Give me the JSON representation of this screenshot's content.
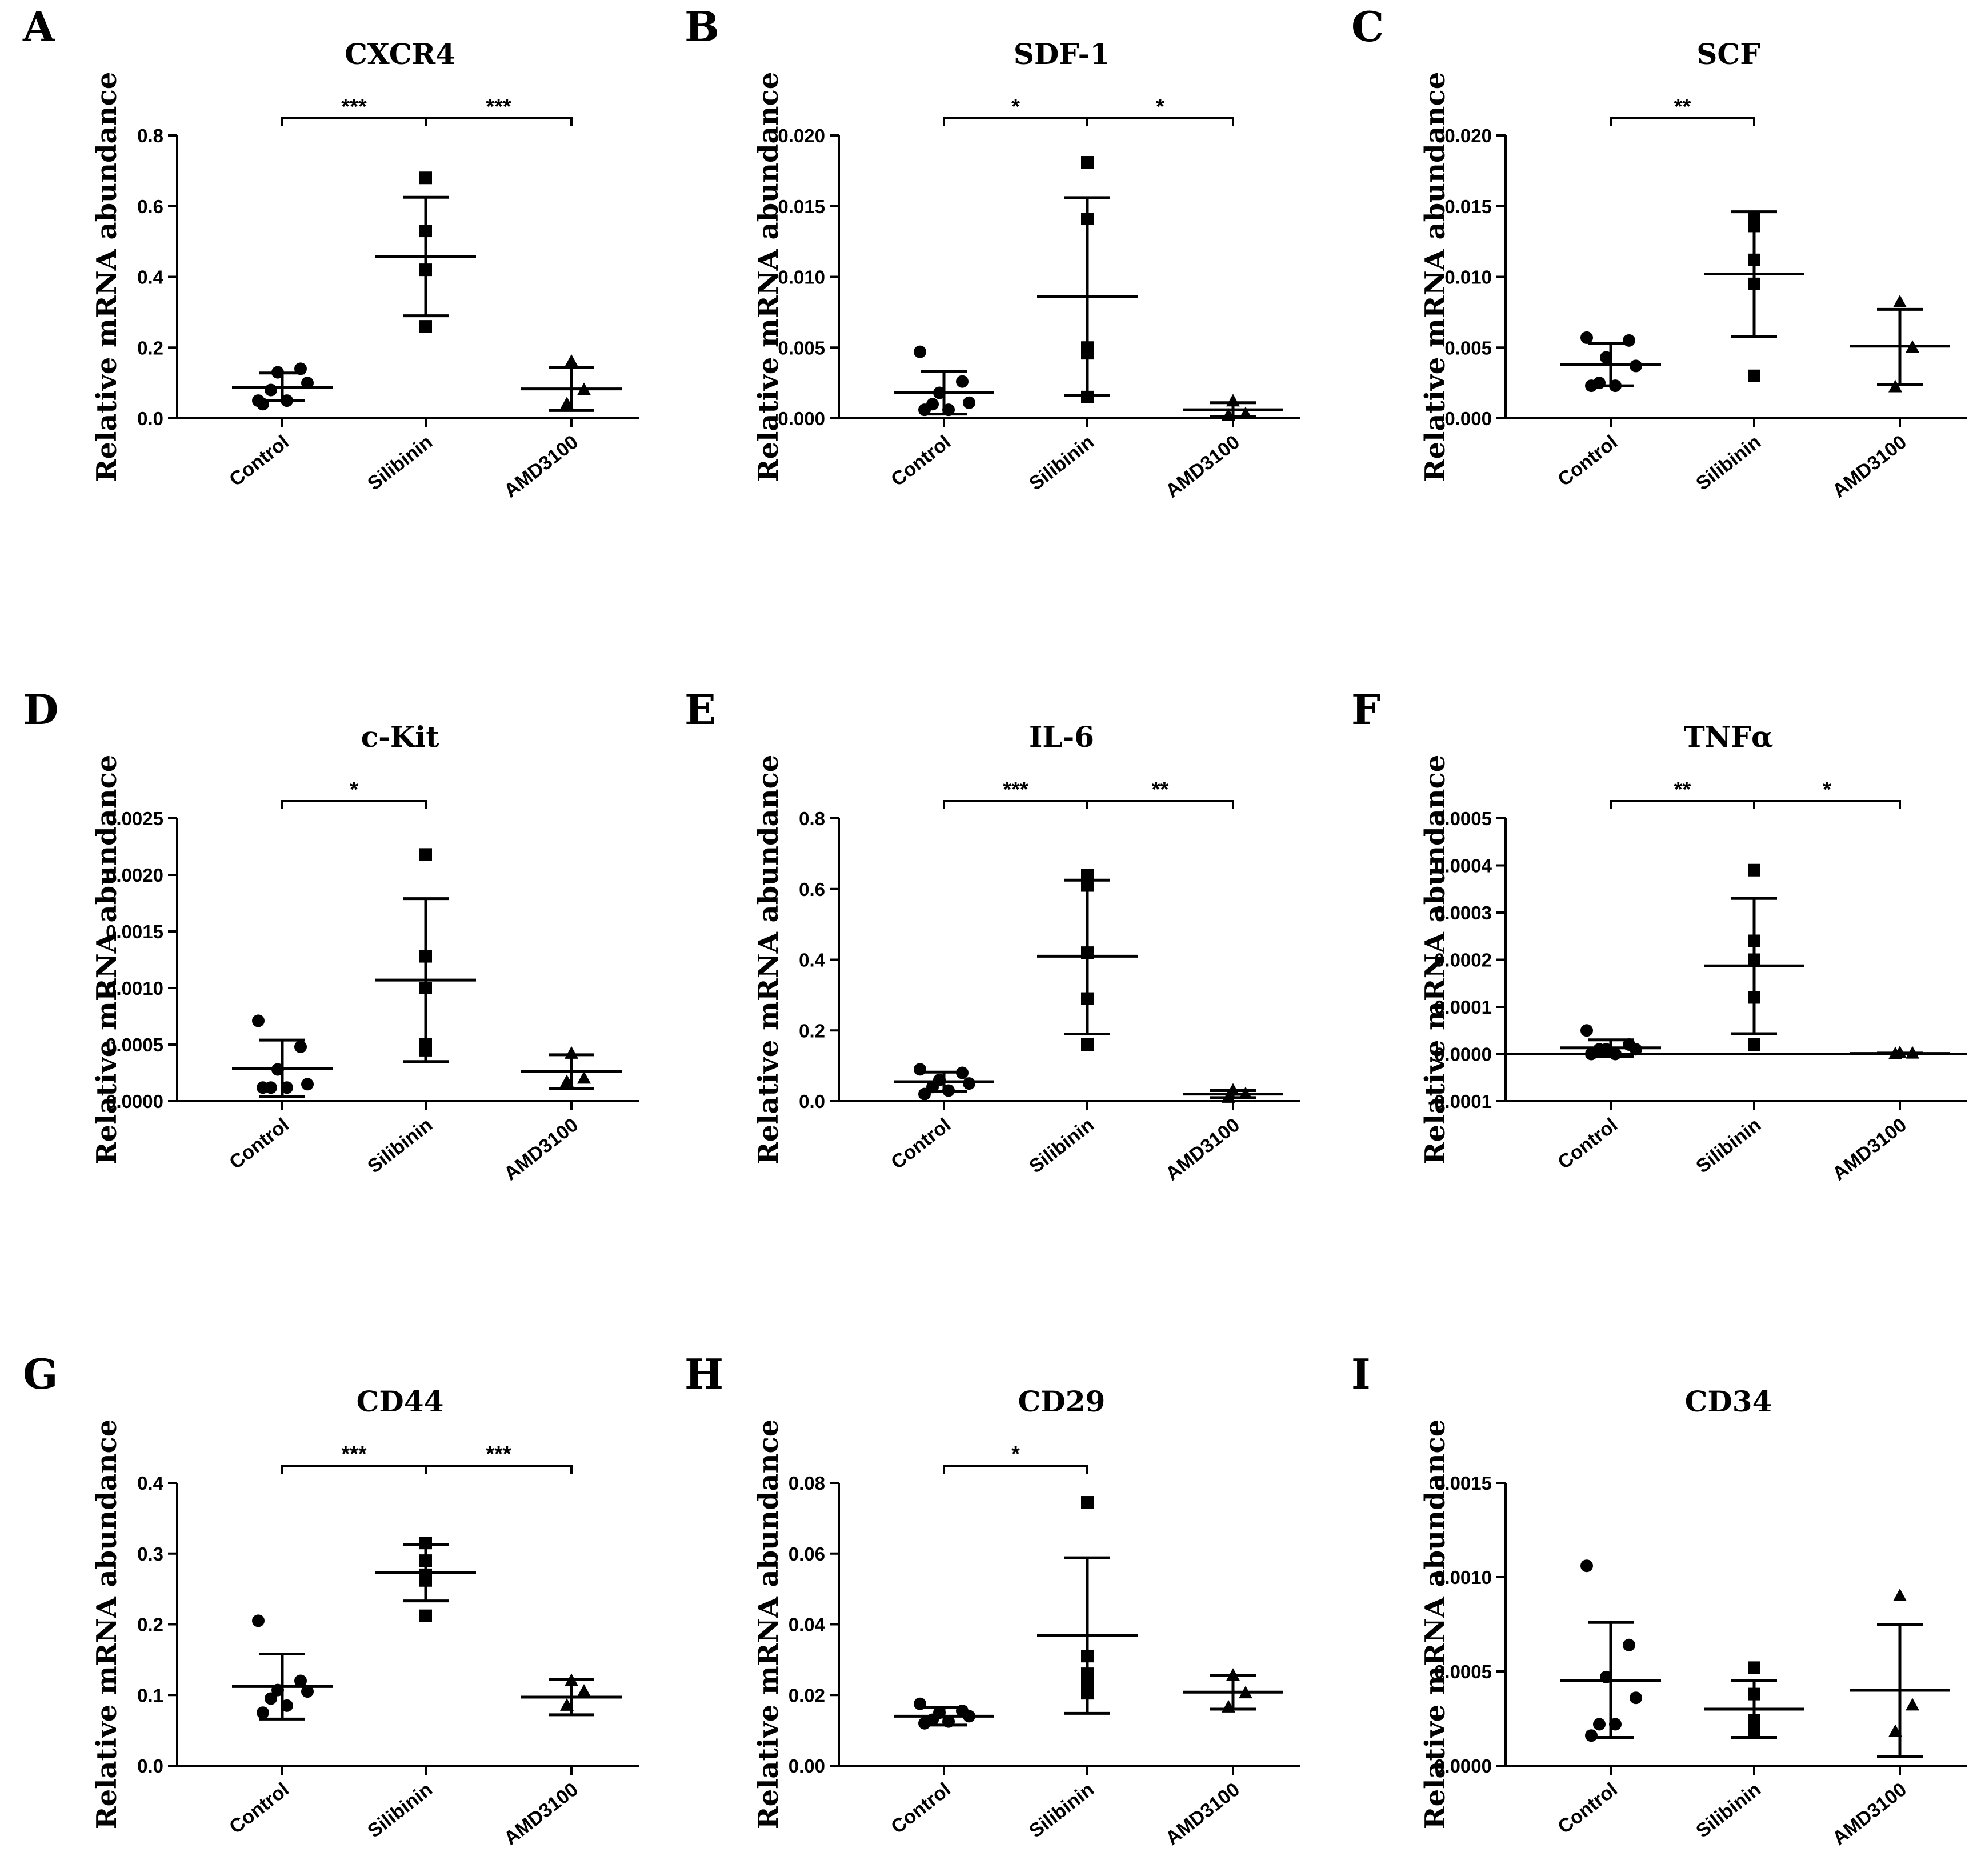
{
  "figure": {
    "x_categories": [
      "Control",
      "Silibinin",
      "AMD3100"
    ],
    "y_axis_label": "Relative mRNA abundance"
  },
  "chart_data": [
    {
      "type": "scatter",
      "panel": "A",
      "title": "CXCR4",
      "xlabel": "",
      "ylabel": "Relative mRNA abundance",
      "categories": [
        "Control",
        "Silibinin",
        "AMD3100"
      ],
      "ylim": [
        0,
        0.8
      ],
      "yticks": [
        0.0,
        0.2,
        0.4,
        0.6,
        0.8
      ],
      "tick_labels": [
        "0.0",
        "0.2",
        "0.4",
        "0.6",
        "0.8"
      ],
      "groups": [
        {
          "name": "Control",
          "marker": "circle",
          "points": [
            0.05,
            0.14,
            0.13,
            0.1,
            0.08,
            0.05,
            0.04
          ],
          "mean": 0.088,
          "sd_low": 0.05,
          "sd_high": 0.128
        },
        {
          "name": "Silibinin",
          "marker": "square",
          "points": [
            0.68,
            0.53,
            0.42,
            0.26
          ],
          "mean": 0.457,
          "sd_low": 0.29,
          "sd_high": 0.625
        },
        {
          "name": "AMD3100",
          "marker": "triangle",
          "points": [
            0.16,
            0.08,
            0.04
          ],
          "mean": 0.083,
          "sd_low": 0.022,
          "sd_high": 0.143
        }
      ],
      "significance": [
        {
          "from": "Control",
          "to": "Silibinin",
          "label": "***"
        },
        {
          "from": "Silibinin",
          "to": "AMD3100",
          "label": "***"
        }
      ]
    },
    {
      "type": "scatter",
      "panel": "B",
      "title": "SDF-1",
      "xlabel": "",
      "ylabel": "Relative mRNA abundance",
      "categories": [
        "Control",
        "Silibinin",
        "AMD3100"
      ],
      "ylim": [
        0,
        0.02
      ],
      "yticks": [
        0.0,
        0.005,
        0.01,
        0.015,
        0.02
      ],
      "tick_labels": [
        "0.000",
        "0.005",
        "0.010",
        "0.015",
        "0.020"
      ],
      "groups": [
        {
          "name": "Control",
          "marker": "circle",
          "points": [
            0.0047,
            0.0026,
            0.0018,
            0.0011,
            0.001,
            0.0006,
            0.0006
          ],
          "mean": 0.0018,
          "sd_low": 0.0003,
          "sd_high": 0.0033
        },
        {
          "name": "Silibinin",
          "marker": "square",
          "points": [
            0.0181,
            0.0141,
            0.005,
            0.0046,
            0.0015
          ],
          "mean": 0.0086,
          "sd_low": 0.0016,
          "sd_high": 0.0156
        },
        {
          "name": "AMD3100",
          "marker": "triangle",
          "points": [
            0.0012,
            0.0003,
            0.0002
          ],
          "mean": 0.0006,
          "sd_low": 0.0001,
          "sd_high": 0.0011
        }
      ],
      "significance": [
        {
          "from": "Control",
          "to": "Silibinin",
          "label": "*"
        },
        {
          "from": "Silibinin",
          "to": "AMD3100",
          "label": "*"
        }
      ]
    },
    {
      "type": "scatter",
      "panel": "C",
      "title": "SCF",
      "xlabel": "",
      "ylabel": "Relative mRNA abundance",
      "categories": [
        "Control",
        "Silibinin",
        "AMD3100"
      ],
      "ylim": [
        0,
        0.02
      ],
      "yticks": [
        0.0,
        0.005,
        0.01,
        0.015,
        0.02
      ],
      "tick_labels": [
        "0.000",
        "0.005",
        "0.010",
        "0.015",
        "0.020"
      ],
      "groups": [
        {
          "name": "Control",
          "marker": "circle",
          "points": [
            0.0057,
            0.0055,
            0.0043,
            0.0037,
            0.0025,
            0.0023,
            0.0023
          ],
          "mean": 0.0038,
          "sd_low": 0.0023,
          "sd_high": 0.0053
        },
        {
          "name": "Silibinin",
          "marker": "square",
          "points": [
            0.0141,
            0.0136,
            0.0112,
            0.0095,
            0.003
          ],
          "mean": 0.0102,
          "sd_low": 0.0058,
          "sd_high": 0.0146
        },
        {
          "name": "AMD3100",
          "marker": "triangle",
          "points": [
            0.0082,
            0.005,
            0.0022
          ],
          "mean": 0.0051,
          "sd_low": 0.0024,
          "sd_high": 0.0077
        }
      ],
      "significance": [
        {
          "from": "Control",
          "to": "Silibinin",
          "label": "**"
        }
      ]
    },
    {
      "type": "scatter",
      "panel": "D",
      "title": "c-Kit",
      "xlabel": "",
      "ylabel": "Relative mRNA abundance",
      "categories": [
        "Control",
        "Silibinin",
        "AMD3100"
      ],
      "ylim": [
        0,
        0.0025
      ],
      "yticks": [
        0.0,
        0.0005,
        0.001,
        0.0015,
        0.002,
        0.0025
      ],
      "tick_labels": [
        "0.0000",
        "0.0005",
        "0.0010",
        "0.0015",
        "0.0020",
        "0.0025"
      ],
      "groups": [
        {
          "name": "Control",
          "marker": "circle",
          "points": [
            0.00071,
            0.00048,
            0.00028,
            0.00015,
            0.00012,
            0.00012,
            0.00012
          ],
          "mean": 0.00029,
          "sd_low": 4e-05,
          "sd_high": 0.00054
        },
        {
          "name": "Silibinin",
          "marker": "square",
          "points": [
            0.00218,
            0.00128,
            0.001,
            0.0005,
            0.00045
          ],
          "mean": 0.00107,
          "sd_low": 0.00035,
          "sd_high": 0.00179
        },
        {
          "name": "AMD3100",
          "marker": "triangle",
          "points": [
            0.00042,
            0.0002,
            0.00017
          ],
          "mean": 0.00026,
          "sd_low": 0.00011,
          "sd_high": 0.00041
        }
      ],
      "significance": [
        {
          "from": "Control",
          "to": "Silibinin",
          "label": "*"
        }
      ]
    },
    {
      "type": "scatter",
      "panel": "E",
      "title": "IL-6",
      "xlabel": "",
      "ylabel": "Relative mRNA abundance",
      "categories": [
        "Control",
        "Silibinin",
        "AMD3100"
      ],
      "ylim": [
        0,
        0.8
      ],
      "yticks": [
        0.0,
        0.2,
        0.4,
        0.6,
        0.8
      ],
      "tick_labels": [
        "0.0",
        "0.2",
        "0.4",
        "0.6",
        "0.8"
      ],
      "groups": [
        {
          "name": "Control",
          "marker": "circle",
          "points": [
            0.09,
            0.08,
            0.06,
            0.05,
            0.04,
            0.03,
            0.02
          ],
          "mean": 0.055,
          "sd_low": 0.028,
          "sd_high": 0.082
        },
        {
          "name": "Silibinin",
          "marker": "square",
          "points": [
            0.64,
            0.61,
            0.42,
            0.29,
            0.16
          ],
          "mean": 0.41,
          "sd_low": 0.19,
          "sd_high": 0.625
        },
        {
          "name": "AMD3100",
          "marker": "triangle",
          "points": [
            0.03,
            0.02,
            0.01
          ],
          "mean": 0.02,
          "sd_low": 0.01,
          "sd_high": 0.03
        }
      ],
      "significance": [
        {
          "from": "Control",
          "to": "Silibinin",
          "label": "***"
        },
        {
          "from": "Silibinin",
          "to": "AMD3100",
          "label": "**"
        }
      ]
    },
    {
      "type": "scatter",
      "panel": "F",
      "title": "TNFα",
      "xlabel": "",
      "ylabel": "Relative mRNA abundance",
      "categories": [
        "Control",
        "Silibinin",
        "AMD3100"
      ],
      "ylim": [
        -0.0001,
        0.0005
      ],
      "yticks": [
        -0.0001,
        0.0,
        0.0001,
        0.0002,
        0.0003,
        0.0004,
        0.0005
      ],
      "tick_labels": [
        "-0.0001",
        "0.0000",
        "0.0001",
        "0.0002",
        "0.0003",
        "0.0004",
        "0.0005"
      ],
      "zero_line": true,
      "groups": [
        {
          "name": "Control",
          "marker": "circle",
          "points": [
            5e-05,
            2e-05,
            1e-05,
            1e-05,
            1e-05,
            0.0,
            0.0
          ],
          "mean": 1.3e-05,
          "sd_low": -5e-06,
          "sd_high": 3e-05
        },
        {
          "name": "Silibinin",
          "marker": "square",
          "points": [
            0.00039,
            0.00024,
            0.0002,
            0.00012,
            2e-05
          ],
          "mean": 0.000187,
          "sd_low": 4.3e-05,
          "sd_high": 0.00033
        },
        {
          "name": "AMD3100",
          "marker": "triangle",
          "points": [
            2e-06,
            1e-06,
            0.0
          ],
          "mean": 1e-06,
          "sd_low": 0.0,
          "sd_high": 2e-06
        }
      ],
      "significance": [
        {
          "from": "Control",
          "to": "Silibinin",
          "label": "**"
        },
        {
          "from": "Silibinin",
          "to": "AMD3100",
          "label": "*"
        }
      ]
    },
    {
      "type": "scatter",
      "panel": "G",
      "title": "CD44",
      "xlabel": "",
      "ylabel": "Relative mRNA abundance",
      "categories": [
        "Control",
        "Silibinin",
        "AMD3100"
      ],
      "ylim": [
        0,
        0.4
      ],
      "yticks": [
        0.0,
        0.1,
        0.2,
        0.3,
        0.4
      ],
      "tick_labels": [
        "0.0",
        "0.1",
        "0.2",
        "0.3",
        "0.4"
      ],
      "groups": [
        {
          "name": "Control",
          "marker": "circle",
          "points": [
            0.205,
            0.12,
            0.107,
            0.105,
            0.095,
            0.085,
            0.075
          ],
          "mean": 0.112,
          "sd_low": 0.066,
          "sd_high": 0.158
        },
        {
          "name": "Silibinin",
          "marker": "square",
          "points": [
            0.315,
            0.29,
            0.27,
            0.262,
            0.212
          ],
          "mean": 0.273,
          "sd_low": 0.233,
          "sd_high": 0.313
        },
        {
          "name": "AMD3100",
          "marker": "triangle",
          "points": [
            0.12,
            0.105,
            0.085
          ],
          "mean": 0.097,
          "sd_low": 0.072,
          "sd_high": 0.122
        }
      ],
      "significance": [
        {
          "from": "Control",
          "to": "Silibinin",
          "label": "***"
        },
        {
          "from": "Silibinin",
          "to": "AMD3100",
          "label": "***"
        }
      ]
    },
    {
      "type": "scatter",
      "panel": "H",
      "title": "CD29",
      "xlabel": "",
      "ylabel": "Relative mRNA abundance",
      "categories": [
        "Control",
        "Silibinin",
        "AMD3100"
      ],
      "ylim": [
        0,
        0.08
      ],
      "yticks": [
        0.0,
        0.02,
        0.04,
        0.06,
        0.08
      ],
      "tick_labels": [
        "0.00",
        "0.02",
        "0.04",
        "0.06",
        "0.08"
      ],
      "groups": [
        {
          "name": "Control",
          "marker": "circle",
          "points": [
            0.0175,
            0.0155,
            0.015,
            0.014,
            0.013,
            0.0125,
            0.012
          ],
          "mean": 0.014,
          "sd_low": 0.0115,
          "sd_high": 0.0165
        },
        {
          "name": "Silibinin",
          "marker": "square",
          "points": [
            0.0745,
            0.031,
            0.026,
            0.0225,
            0.0205
          ],
          "mean": 0.0368,
          "sd_low": 0.0148,
          "sd_high": 0.0588
        },
        {
          "name": "AMD3100",
          "marker": "triangle",
          "points": [
            0.0255,
            0.0205,
            0.0165
          ],
          "mean": 0.0208,
          "sd_low": 0.016,
          "sd_high": 0.0256
        }
      ],
      "significance": [
        {
          "from": "Control",
          "to": "Silibinin",
          "label": "*"
        }
      ]
    },
    {
      "type": "scatter",
      "panel": "I",
      "title": "CD34",
      "xlabel": "",
      "ylabel": "Relative mRNA abundance",
      "categories": [
        "Control",
        "Silibinin",
        "AMD3100"
      ],
      "ylim": [
        0,
        0.0015
      ],
      "yticks": [
        0.0,
        0.0005,
        0.001,
        0.0015
      ],
      "tick_labels": [
        "0.0000",
        "0.0005",
        "0.0010",
        "0.0015"
      ],
      "groups": [
        {
          "name": "Control",
          "marker": "circle",
          "points": [
            0.00106,
            0.00064,
            0.00047,
            0.00036,
            0.00022,
            0.00022,
            0.00016
          ],
          "mean": 0.00045,
          "sd_low": 0.00015,
          "sd_high": 0.00076
        },
        {
          "name": "Silibinin",
          "marker": "square",
          "points": [
            0.00052,
            0.00038,
            0.00024,
            0.00022,
            0.00018
          ],
          "mean": 0.0003,
          "sd_low": 0.00015,
          "sd_high": 0.00045
        },
        {
          "name": "AMD3100",
          "marker": "triangle",
          "points": [
            0.0009,
            0.00032,
            0.00018
          ],
          "mean": 0.0004,
          "sd_low": 5e-05,
          "sd_high": 0.00075
        }
      ],
      "significance": []
    }
  ]
}
